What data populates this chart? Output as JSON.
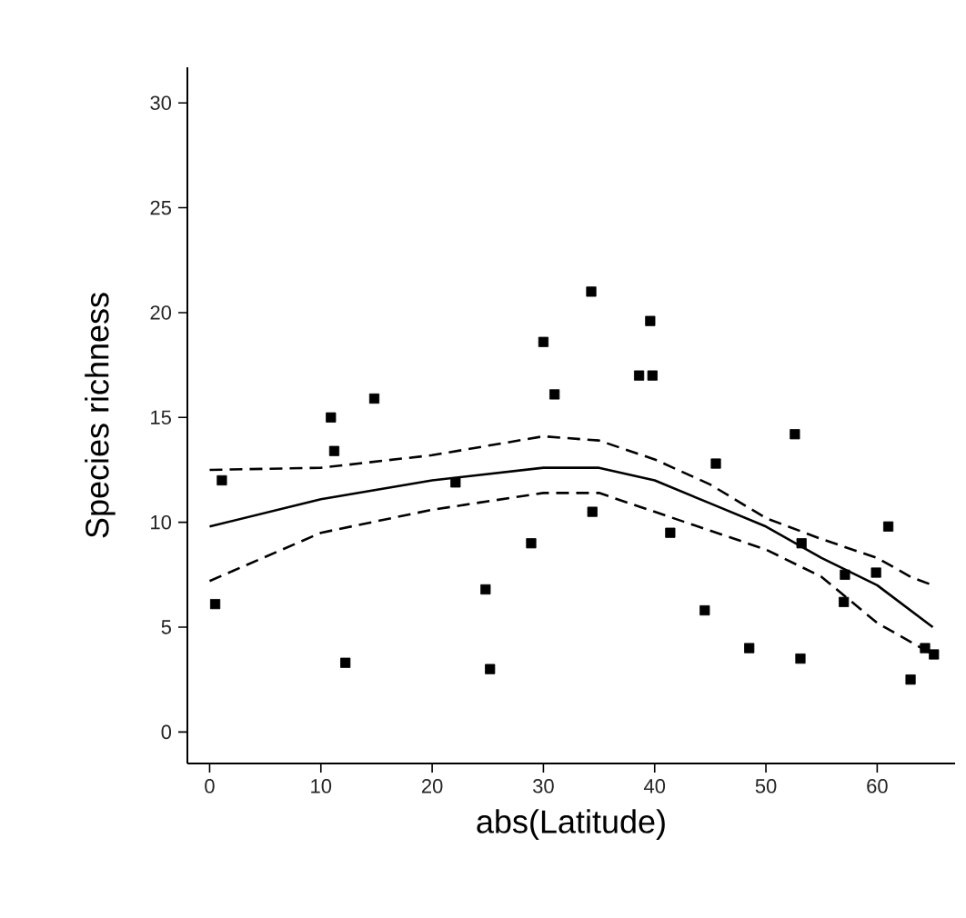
{
  "chart_data": {
    "type": "scatter",
    "xlabel": "abs(Latitude)",
    "ylabel": "Species richness",
    "xlim": [
      -2,
      67
    ],
    "ylim": [
      -1.5,
      31.7
    ],
    "xticks": [
      0,
      10,
      20,
      30,
      40,
      50,
      60
    ],
    "yticks": [
      0,
      5,
      10,
      15,
      20,
      25,
      30
    ],
    "series": [
      {
        "marker": "square",
        "color": "#000000",
        "x": [
          0.5,
          1.1,
          10.9,
          11.2,
          12.2,
          14.8,
          22.1,
          24.8,
          25.2,
          28.9,
          30.0,
          31.0,
          34.4,
          34.3,
          39.6,
          38.6,
          39.8,
          41.4,
          45.5,
          44.5,
          48.5,
          52.6,
          53.1,
          53.2,
          57.1,
          57.0,
          59.9,
          61.0,
          63.0,
          64.3,
          65.1
        ],
        "values": [
          6.1,
          12.0,
          15.0,
          13.4,
          3.3,
          15.9,
          11.9,
          6.8,
          3.0,
          9.0,
          18.6,
          16.1,
          10.5,
          21.0,
          19.6,
          17.0,
          17.0,
          9.5,
          12.8,
          5.8,
          4.0,
          14.2,
          3.5,
          9.0,
          7.5,
          6.2,
          7.6,
          9.8,
          2.5,
          4.0,
          3.7
        ]
      },
      {
        "type": "line",
        "marker": "none",
        "line_style": "solid",
        "color": "#000000",
        "x": [
          0,
          10,
          20,
          30,
          35,
          40,
          45,
          50,
          55,
          60,
          65
        ],
        "values": [
          9.8,
          11.1,
          12.0,
          12.6,
          12.6,
          12.0,
          10.9,
          9.8,
          8.3,
          7.0,
          5.0
        ]
      },
      {
        "type": "line",
        "marker": "none",
        "line_style": "dashed",
        "color": "#000000",
        "x": [
          0,
          10,
          20,
          30,
          35,
          40,
          45,
          50,
          55,
          60,
          63,
          65
        ],
        "values": [
          12.5,
          12.6,
          13.2,
          14.1,
          13.9,
          13.0,
          11.8,
          10.2,
          9.2,
          8.3,
          7.4,
          7.0
        ]
      },
      {
        "type": "line",
        "marker": "none",
        "line_style": "dashed",
        "color": "#000000",
        "x": [
          0,
          10,
          20,
          30,
          35,
          40,
          45,
          50,
          55,
          60,
          65
        ],
        "values": [
          7.2,
          9.5,
          10.6,
          11.4,
          11.4,
          10.5,
          9.6,
          8.7,
          7.4,
          5.2,
          3.7
        ]
      }
    ]
  }
}
